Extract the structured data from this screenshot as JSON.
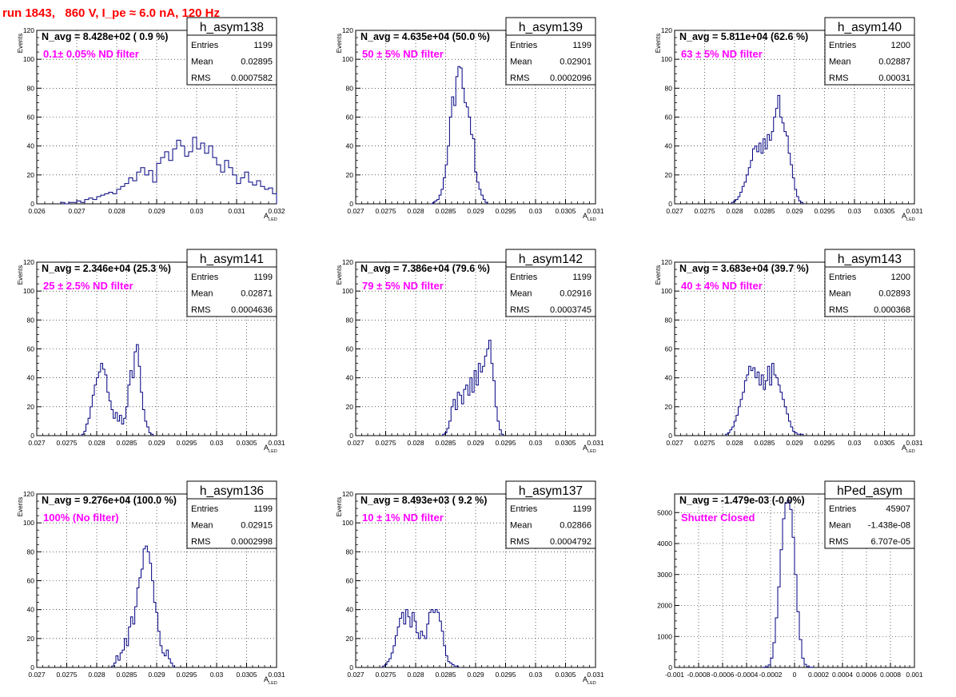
{
  "page": {
    "title": "run 1843,   860 V, I_pe ≈ 6.0 nA, 120 Hz"
  },
  "colors": {
    "histogram_line": "#000080",
    "annotation_magenta": "#ff00ff",
    "title_red": "#ff0000",
    "grid_dotted": "#000000"
  },
  "chart_data": [
    {
      "type": "histogram",
      "name": "h_asym138",
      "navg_text": "N_avg = 8.428e+02 ( 0.9 %)",
      "filter_text": "0.1± 0.05% ND filter",
      "stats": {
        "Entries": "1199",
        "Mean": "0.02895",
        "RMS": "0.0007582"
      },
      "xlabel_main": "A",
      "xlabel_sub": "LED",
      "ylabel": "Events",
      "xlim": [
        0.026,
        0.032
      ],
      "ylim": [
        0,
        120
      ],
      "xticks": [
        0.026,
        0.027,
        0.028,
        0.029,
        0.03,
        0.031,
        0.032
      ],
      "xtick_labels": [
        "0.026",
        "0.027",
        "0.028",
        "0.029",
        "0.03",
        "0.031",
        "0.032"
      ],
      "yticks": [
        0,
        20,
        40,
        60,
        80,
        100,
        120
      ],
      "ytick_labels": [
        "0",
        "20",
        "40",
        "60",
        "80",
        "100",
        "120"
      ],
      "bin_width": 0.0001,
      "x_start": 0.0266,
      "values": [
        1,
        0,
        1,
        1,
        2,
        1,
        3,
        4,
        3,
        5,
        6,
        7,
        8,
        7,
        10,
        12,
        14,
        18,
        16,
        22,
        25,
        20,
        23,
        15,
        28,
        32,
        36,
        30,
        38,
        44,
        40,
        33,
        36,
        46,
        38,
        42,
        35,
        40,
        32,
        27,
        22,
        30,
        25,
        20,
        14,
        18,
        22,
        15,
        13,
        16,
        12,
        10,
        11,
        7,
        8,
        6,
        5,
        4,
        4,
        3,
        2,
        2,
        1,
        1
      ]
    },
    {
      "type": "histogram",
      "name": "h_asym139",
      "navg_text": "N_avg = 4.635e+04 (50.0 %)",
      "filter_text": "50 ± 5% ND filter",
      "stats": {
        "Entries": "1199",
        "Mean": "0.02901",
        "RMS": "0.0002096"
      },
      "xlabel_main": "A",
      "xlabel_sub": "LED",
      "ylabel": "Events",
      "xlim": [
        0.027,
        0.031
      ],
      "ylim": [
        0,
        120
      ],
      "xticks": [
        0.027,
        0.0275,
        0.028,
        0.0285,
        0.029,
        0.0295,
        0.03,
        0.0305,
        0.031
      ],
      "xtick_labels": [
        "0.027",
        "0.0275",
        "0.028",
        "0.0285",
        "0.029",
        "0.0295",
        "0.03",
        "0.0305",
        "0.031"
      ],
      "yticks": [
        0,
        20,
        40,
        60,
        80,
        100,
        120
      ],
      "ytick_labels": [
        "0",
        "20",
        "40",
        "60",
        "80",
        "100",
        "120"
      ],
      "bin_width": 3.5e-05,
      "x_start": 0.02825,
      "values": [
        0,
        1,
        2,
        3,
        6,
        10,
        18,
        27,
        40,
        60,
        74,
        68,
        88,
        95,
        94,
        80,
        70,
        67,
        60,
        48,
        45,
        22,
        15,
        10,
        6,
        3,
        1
      ]
    },
    {
      "type": "histogram",
      "name": "h_asym140",
      "navg_text": "N_avg = 5.811e+04 (62.6 %)",
      "filter_text": "63 ± 5% ND filter",
      "stats": {
        "Entries": "1200",
        "Mean": "0.02887",
        "RMS": "0.00031"
      },
      "xlabel_main": "A",
      "xlabel_sub": "LED",
      "ylabel": "Events",
      "xlim": [
        0.027,
        0.031
      ],
      "ylim": [
        0,
        120
      ],
      "xticks": [
        0.027,
        0.0275,
        0.028,
        0.0285,
        0.029,
        0.0295,
        0.03,
        0.0305,
        0.031
      ],
      "xtick_labels": [
        "0.027",
        "0.0275",
        "0.028",
        "0.0285",
        "0.029",
        "0.0295",
        "0.03",
        "0.0305",
        "0.031"
      ],
      "yticks": [
        0,
        20,
        40,
        60,
        80,
        100,
        120
      ],
      "ytick_labels": [
        "0",
        "20",
        "40",
        "60",
        "80",
        "100",
        "120"
      ],
      "bin_width": 3.5e-05,
      "x_start": 0.02795,
      "values": [
        1,
        2,
        3,
        5,
        8,
        12,
        15,
        20,
        25,
        30,
        38,
        40,
        36,
        42,
        35,
        45,
        38,
        48,
        44,
        50,
        60,
        66,
        75,
        60,
        56,
        50,
        47,
        35,
        27,
        18,
        10,
        5,
        2,
        1
      ]
    },
    {
      "type": "histogram",
      "name": "h_asym141",
      "navg_text": "N_avg = 2.346e+04 (25.3 %)",
      "filter_text": "25 ± 2.5% ND filter",
      "stats": {
        "Entries": "1199",
        "Mean": "0.02871",
        "RMS": "0.0004636"
      },
      "xlabel_main": "A",
      "xlabel_sub": "LED",
      "ylabel": "Events",
      "xlim": [
        0.027,
        0.031
      ],
      "ylim": [
        0,
        120
      ],
      "xticks": [
        0.027,
        0.0275,
        0.028,
        0.0285,
        0.029,
        0.0295,
        0.03,
        0.0305,
        0.031
      ],
      "xtick_labels": [
        "0.027",
        "0.0275",
        "0.028",
        "0.0285",
        "0.029",
        "0.0295",
        "0.03",
        "0.0305",
        "0.031"
      ],
      "yticks": [
        0,
        20,
        40,
        60,
        80,
        100,
        120
      ],
      "ytick_labels": [
        "0",
        "20",
        "40",
        "60",
        "80",
        "100",
        "120"
      ],
      "bin_width": 3.5e-05,
      "x_start": 0.02775,
      "values": [
        1,
        3,
        8,
        12,
        20,
        28,
        35,
        40,
        44,
        50,
        46,
        42,
        30,
        24,
        18,
        12,
        16,
        10,
        14,
        8,
        12,
        20,
        35,
        45,
        40,
        58,
        63,
        48,
        30,
        18,
        10,
        6,
        2,
        1
      ]
    },
    {
      "type": "histogram",
      "name": "h_asym142",
      "navg_text": "N_avg = 7.386e+04 (79.6 %)",
      "filter_text": "79 ± 5% ND filter",
      "stats": {
        "Entries": "1199",
        "Mean": "0.02916",
        "RMS": "0.0003745"
      },
      "xlabel_main": "A",
      "xlabel_sub": "LED",
      "ylabel": "Events",
      "xlim": [
        0.027,
        0.031
      ],
      "ylim": [
        0,
        120
      ],
      "xticks": [
        0.027,
        0.0275,
        0.028,
        0.0285,
        0.029,
        0.0295,
        0.03,
        0.0305,
        0.031
      ],
      "xtick_labels": [
        "0.027",
        "0.0275",
        "0.028",
        "0.0285",
        "0.029",
        "0.0295",
        "0.03",
        "0.0305",
        "0.031"
      ],
      "yticks": [
        0,
        20,
        40,
        60,
        80,
        100,
        120
      ],
      "ytick_labels": [
        "0",
        "20",
        "40",
        "60",
        "80",
        "100",
        "120"
      ],
      "bin_width": 3.5e-05,
      "x_start": 0.02845,
      "values": [
        1,
        2,
        5,
        10,
        20,
        25,
        18,
        30,
        28,
        22,
        32,
        35,
        28,
        40,
        30,
        45,
        35,
        50,
        44,
        48,
        55,
        60,
        66,
        50,
        38,
        20,
        10,
        4,
        1
      ]
    },
    {
      "type": "histogram",
      "name": "h_asym143",
      "navg_text": "N_avg = 3.683e+04 (39.7 %)",
      "filter_text": "40 ± 4% ND filter",
      "stats": {
        "Entries": "1200",
        "Mean": "0.02893",
        "RMS": "0.000368"
      },
      "xlabel_main": "A",
      "xlabel_sub": "LED",
      "ylabel": "Events",
      "xlim": [
        0.027,
        0.031
      ],
      "ylim": [
        0,
        120
      ],
      "xticks": [
        0.027,
        0.0275,
        0.028,
        0.0285,
        0.029,
        0.0295,
        0.03,
        0.0305,
        0.031
      ],
      "xtick_labels": [
        "0.027",
        "0.0275",
        "0.028",
        "0.0285",
        "0.029",
        "0.0295",
        "0.03",
        "0.0305",
        "0.031"
      ],
      "yticks": [
        0,
        20,
        40,
        60,
        80,
        100,
        120
      ],
      "ytick_labels": [
        "0",
        "20",
        "40",
        "60",
        "80",
        "100",
        "120"
      ],
      "bin_width": 3.5e-05,
      "x_start": 0.02785,
      "values": [
        1,
        2,
        4,
        6,
        10,
        14,
        20,
        25,
        30,
        38,
        42,
        48,
        45,
        47,
        40,
        44,
        35,
        42,
        32,
        38,
        48,
        35,
        50,
        42,
        40,
        35,
        30,
        25,
        20,
        15,
        10,
        6,
        3,
        2,
        1,
        1,
        1
      ]
    },
    {
      "type": "histogram",
      "name": "h_asym136",
      "navg_text": "N_avg = 9.276e+04 (100.0 %)",
      "filter_text": "100% (No filter)",
      "stats": {
        "Entries": "1199",
        "Mean": "0.02915",
        "RMS": "0.0002998"
      },
      "xlabel_main": "A",
      "xlabel_sub": "LED",
      "ylabel": "Events",
      "xlim": [
        0.027,
        0.031
      ],
      "ylim": [
        0,
        120
      ],
      "xticks": [
        0.027,
        0.0275,
        0.028,
        0.0285,
        0.029,
        0.0295,
        0.03,
        0.0305,
        0.031
      ],
      "xtick_labels": [
        "0.027",
        "0.0275",
        "0.028",
        "0.0285",
        "0.029",
        "0.0295",
        "0.03",
        "0.0305",
        "0.031"
      ],
      "yticks": [
        0,
        20,
        40,
        60,
        80,
        100,
        120
      ],
      "ytick_labels": [
        "0",
        "20",
        "40",
        "60",
        "80",
        "100",
        "120"
      ],
      "bin_width": 3.5e-05,
      "x_start": 0.02825,
      "values": [
        1,
        3,
        8,
        5,
        10,
        12,
        20,
        15,
        28,
        35,
        30,
        42,
        55,
        62,
        68,
        82,
        84,
        80,
        72,
        60,
        45,
        38,
        25,
        15,
        10,
        8,
        12,
        6,
        3,
        1
      ]
    },
    {
      "type": "histogram",
      "name": "h_asym137",
      "navg_text": "N_avg = 8.493e+03 ( 9.2 %)",
      "filter_text": "10 ± 1% ND filter",
      "stats": {
        "Entries": "1199",
        "Mean": "0.02866",
        "RMS": "0.0004792"
      },
      "xlabel_main": "A",
      "xlabel_sub": "LED",
      "ylabel": "Events",
      "xlim": [
        0.027,
        0.031
      ],
      "ylim": [
        0,
        120
      ],
      "xticks": [
        0.027,
        0.0275,
        0.028,
        0.0285,
        0.029,
        0.0295,
        0.03,
        0.0305,
        0.031
      ],
      "xtick_labels": [
        "0.027",
        "0.0275",
        "0.028",
        "0.0285",
        "0.029",
        "0.0295",
        "0.03",
        "0.0305",
        "0.031"
      ],
      "yticks": [
        0,
        20,
        40,
        60,
        80,
        100,
        120
      ],
      "ytick_labels": [
        "0",
        "20",
        "40",
        "60",
        "80",
        "100",
        "120"
      ],
      "bin_width": 3.5e-05,
      "x_start": 0.02745,
      "values": [
        1,
        2,
        4,
        6,
        10,
        15,
        22,
        28,
        34,
        38,
        30,
        40,
        35,
        28,
        38,
        32,
        24,
        20,
        25,
        22,
        20,
        30,
        38,
        40,
        38,
        40,
        38,
        32,
        25,
        15,
        8,
        4,
        3,
        2,
        1,
        1
      ]
    },
    {
      "type": "histogram",
      "name": "hPed_asym",
      "navg_text": "N_avg = -1.479e-03 (-0.0%)",
      "filter_text": "Shutter Closed",
      "stats": {
        "Entries": "45907",
        "Mean": "-1.438e-08",
        "RMS": "6.707e-05"
      },
      "xlabel_main": "",
      "xlabel_sub": "",
      "ylabel": "",
      "xlim": [
        -0.001,
        0.001
      ],
      "ylim": [
        0,
        5600
      ],
      "xticks": [
        -0.001,
        -0.0008,
        -0.0006,
        -0.0004,
        -0.0002,
        0,
        0.0002,
        0.0004,
        0.0006,
        0.0008,
        0.001
      ],
      "xtick_labels": [
        "-0.001",
        "-0.0008",
        "-0.0006",
        "-0.0004",
        "-0.0002",
        "0",
        "0.0002",
        "0.0004",
        "0.0006",
        "0.0008",
        "0.001"
      ],
      "yticks": [
        0,
        1000,
        2000,
        3000,
        4000,
        5000
      ],
      "ytick_labels": [
        "0",
        "1000",
        "2000",
        "3000",
        "4000",
        "5000"
      ],
      "bin_width": 2e-05,
      "x_start": -0.00026,
      "values": [
        5,
        20,
        80,
        300,
        800,
        1600,
        2600,
        3800,
        4800,
        5300,
        5400,
        5100,
        4200,
        3000,
        1800,
        900,
        300,
        100,
        30,
        8,
        2
      ]
    }
  ]
}
